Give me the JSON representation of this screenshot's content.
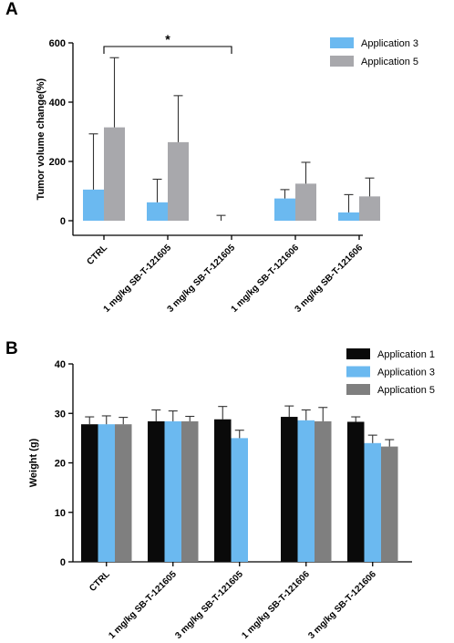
{
  "panel_a_label": "A",
  "panel_b_label": "B",
  "chart_data": [
    {
      "type": "bar",
      "panel": "A",
      "ylabel": "Tumor volume change(%)",
      "xlabel": "",
      "ylim": [
        -50,
        600
      ],
      "yticks": [
        "0",
        "200",
        "400",
        "600"
      ],
      "categories": [
        "CTRL",
        "1 mg/kg SB-T-121605",
        "3 mg/kg SB-T-121605",
        "1 mg/kg SB-T-121606",
        "3 mg/kg SB-T-121606"
      ],
      "series": [
        {
          "name": "Application 3",
          "color": "#6BB9F0",
          "values": [
            105,
            62,
            0,
            75,
            28
          ],
          "errors": [
            188,
            78,
            18,
            30,
            60
          ]
        },
        {
          "name": "Application 5",
          "color": "#A8A8AC",
          "values": [
            315,
            265,
            0,
            125,
            82
          ],
          "errors": [
            235,
            157,
            0,
            72,
            62
          ]
        }
      ],
      "significance": {
        "from": "CTRL",
        "to": "3 mg/kg SB-T-121605",
        "label": "*"
      },
      "legend": "top-right",
      "grid": false
    },
    {
      "type": "bar",
      "panel": "B",
      "ylabel": "Weight (g)",
      "xlabel": "",
      "ylim": [
        0,
        40
      ],
      "yticks": [
        "0",
        "10",
        "20",
        "30",
        "40"
      ],
      "categories": [
        "CTRL",
        "1 mg/kg SB-T-121605",
        "3 mg/kg SB-T-121605",
        "1 mg/kg SB-T-121606",
        "3 mg/kg SB-T-121606"
      ],
      "series": [
        {
          "name": "Application 1",
          "color": "#0A0A0A",
          "values": [
            27.8,
            28.4,
            28.8,
            29.3,
            28.3
          ],
          "errors": [
            1.5,
            2.3,
            2.6,
            2.2,
            1.0
          ]
        },
        {
          "name": "Application 3",
          "color": "#6BB9F0",
          "values": [
            27.8,
            28.4,
            25.0,
            28.6,
            24.0
          ],
          "errors": [
            1.7,
            2.1,
            1.6,
            2.1,
            1.6
          ]
        },
        {
          "name": "Application 5",
          "color": "#7F7F7F",
          "values": [
            27.8,
            28.4,
            0,
            28.4,
            23.3
          ],
          "errors": [
            1.4,
            1.0,
            0,
            2.8,
            1.4
          ]
        }
      ],
      "legend": "top-right",
      "grid": false
    }
  ]
}
